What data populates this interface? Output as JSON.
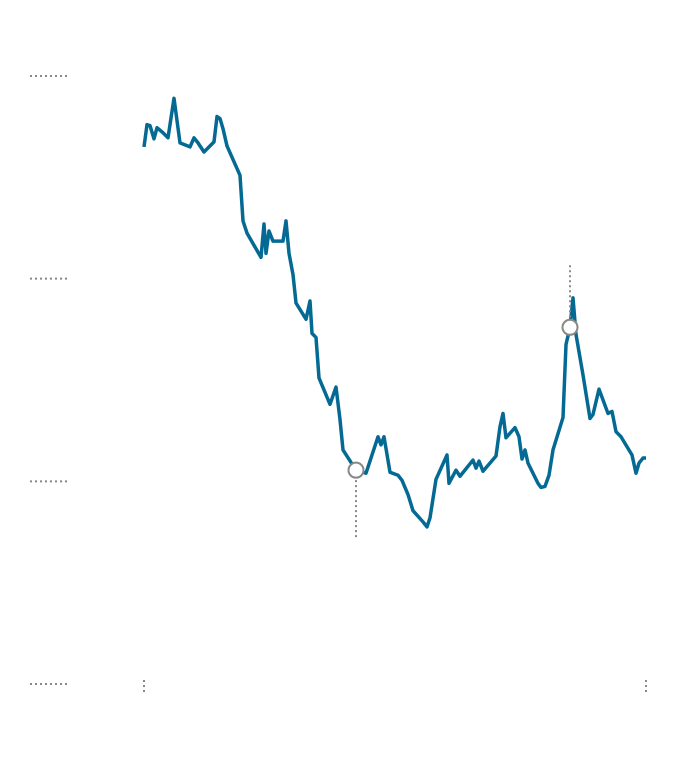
{
  "chart_data": {
    "type": "line",
    "x": [
      0,
      3,
      6,
      10,
      13,
      19,
      24,
      30,
      36,
      46,
      50,
      54,
      60,
      70,
      73,
      76,
      79,
      83,
      96,
      99,
      103,
      117,
      120,
      122,
      125,
      129,
      139,
      142,
      145,
      149,
      152,
      162,
      166,
      168,
      172,
      175,
      186,
      192,
      196,
      199,
      212,
      222,
      234,
      237,
      240,
      246,
      254,
      258,
      264,
      269,
      279,
      283,
      286,
      292,
      303,
      305,
      312,
      316,
      329,
      332,
      335,
      339,
      352,
      356,
      359,
      362,
      371,
      375,
      378,
      381,
      384,
      394,
      397,
      401,
      405,
      409,
      419,
      422,
      426,
      429,
      432,
      439,
      446,
      449,
      455,
      464,
      468,
      472,
      477,
      488,
      492,
      495,
      499,
      502
    ],
    "series": [
      {
        "color": "#046a93",
        "values": [
          530,
          552,
          551,
          538,
          549,
          544,
          539,
          578,
          534,
          530,
          539,
          534,
          525,
          535,
          560,
          558,
          548,
          531,
          502,
          457,
          445,
          421,
          454,
          425,
          447,
          437,
          437,
          457,
          425,
          404,
          376,
          360,
          378,
          346,
          342,
          302,
          276,
          293,
          261,
          231,
          211,
          208,
          244,
          236,
          244,
          209,
          206,
          201,
          187,
          171,
          160,
          155,
          164,
          202,
          226,
          198,
          211,
          205,
          221,
          213,
          220,
          210,
          225,
          254,
          267,
          243,
          253,
          244,
          222,
          231,
          218,
          198,
          194,
          195,
          206,
          231,
          263,
          335,
          352,
          381,
          345,
          305,
          262,
          266,
          291,
          267,
          269,
          249,
          244,
          226,
          208,
          218,
          223,
          223
        ]
      }
    ],
    "highlights": [
      {
        "x": 212,
        "y": 211,
        "leader": "below"
      },
      {
        "x": 426,
        "y": 352,
        "leader": "above"
      }
    ],
    "xlim": [
      0,
      502
    ],
    "xticks": [
      0,
      502
    ],
    "ylim": [
      0,
      600
    ],
    "yticks": [
      0,
      200,
      400,
      600
    ]
  }
}
